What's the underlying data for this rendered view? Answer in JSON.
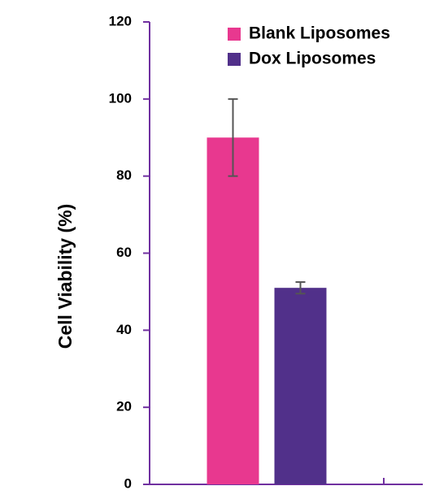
{
  "chart_data": {
    "type": "bar",
    "y_label": "Cell Viability (%)",
    "categories": [
      null
    ],
    "series": [
      {
        "name": "Blank Liposomes",
        "color": "#e8388f",
        "values": [
          90
        ],
        "errors": [
          10
        ]
      },
      {
        "name": "Dox Liposomes",
        "color": "#51308a",
        "values": [
          51
        ],
        "errors": [
          1.5
        ]
      }
    ],
    "ylim": [
      0,
      120
    ],
    "yticks": [
      0,
      20,
      40,
      60,
      80,
      100,
      120
    ],
    "axis_color": "#7030a0",
    "legend": "upper right"
  }
}
